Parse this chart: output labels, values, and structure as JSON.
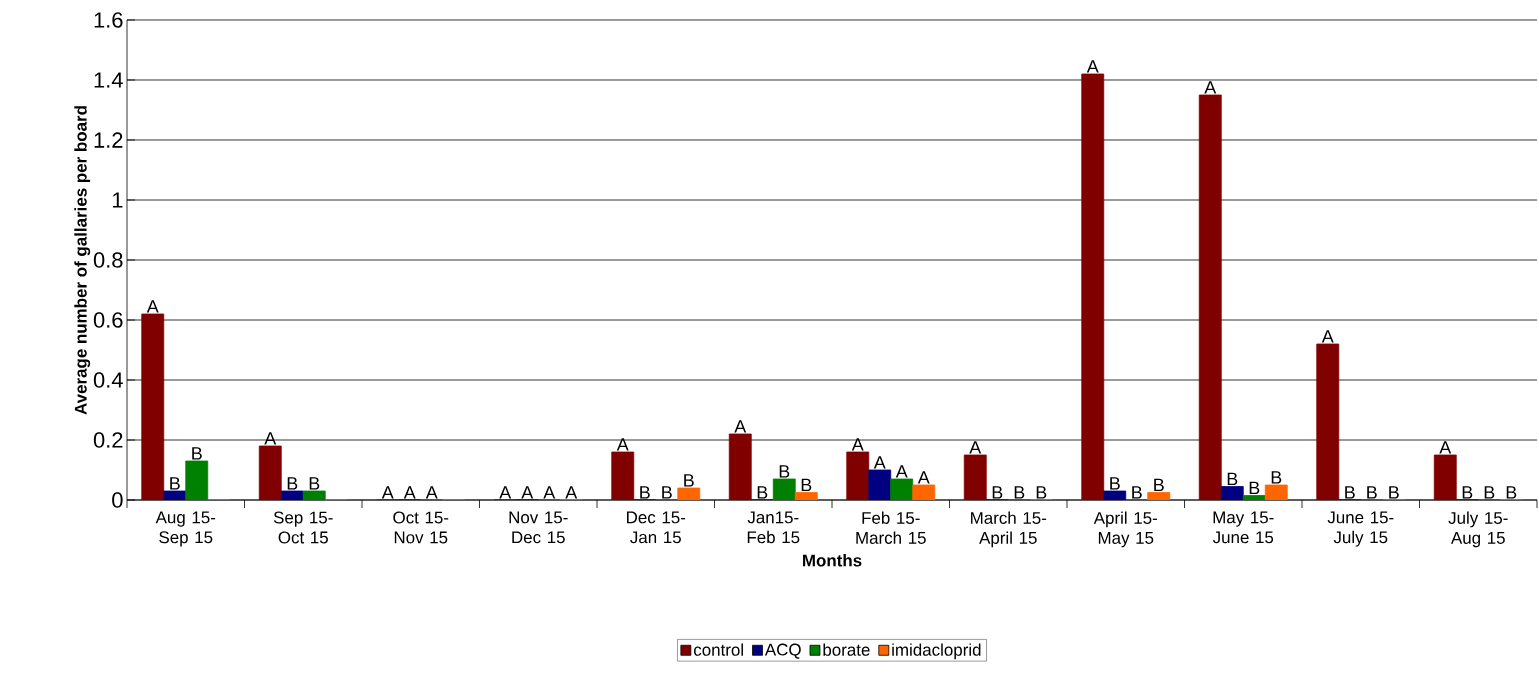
{
  "chart_data": {
    "type": "bar",
    "xlabel": "Months",
    "ylabel": "Average number of gallaries per board",
    "categories": [
      "Aug 15- Sep 15",
      "Sep 15- Oct 15",
      "Oct 15- Nov 15",
      "Nov 15- Dec 15",
      "Dec 15- Jan 15",
      "Jan15- Feb 15",
      "Feb 15- March 15",
      "March 15- April 15",
      "April 15- May 15",
      "May 15- June 15",
      "June 15- July 15",
      "July 15- Aug 15"
    ],
    "series": [
      {
        "name": "control",
        "color": "#800000",
        "values": [
          0.62,
          0.18,
          0,
          0,
          0.16,
          0.22,
          0.16,
          0.15,
          1.42,
          1.35,
          0.52,
          0.15
        ],
        "value_labels": [
          "A",
          "A",
          "A",
          "A",
          "A",
          "A",
          "A",
          "A",
          "A",
          "A",
          "A",
          "A"
        ]
      },
      {
        "name": "ACQ",
        "color": "#000080",
        "values": [
          0.03,
          0.03,
          0,
          0,
          0,
          0,
          0.1,
          0,
          0.03,
          0.045,
          0,
          0
        ],
        "value_labels": [
          "B",
          "B",
          "A",
          "A",
          "B",
          "B",
          "A",
          "B",
          "B",
          "B",
          "B",
          "B"
        ]
      },
      {
        "name": "borate",
        "color": "#008000",
        "values": [
          0.13,
          0.03,
          0,
          0,
          0,
          0.07,
          0.07,
          0,
          0,
          0.015,
          0,
          0
        ],
        "value_labels": [
          "B",
          "B",
          "A",
          "A",
          "B",
          "B",
          "A",
          "B",
          "B",
          "B",
          "B",
          "B"
        ]
      },
      {
        "name": "imidacloprid",
        "color": "#ff6600",
        "values": [
          0,
          0,
          0,
          0,
          0.04,
          0.025,
          0.05,
          0,
          0.025,
          0.05,
          0,
          0
        ],
        "value_labels": [
          null,
          null,
          null,
          "A",
          "B",
          "B",
          "A",
          "B",
          "B",
          "B",
          "B",
          "B"
        ]
      }
    ],
    "ylim": [
      0,
      1.6
    ],
    "yticks": [
      0,
      0.2,
      0.4,
      0.6,
      0.8,
      1,
      1.2,
      1.4,
      1.6
    ],
    "grid": "y",
    "legend": "bottom"
  }
}
